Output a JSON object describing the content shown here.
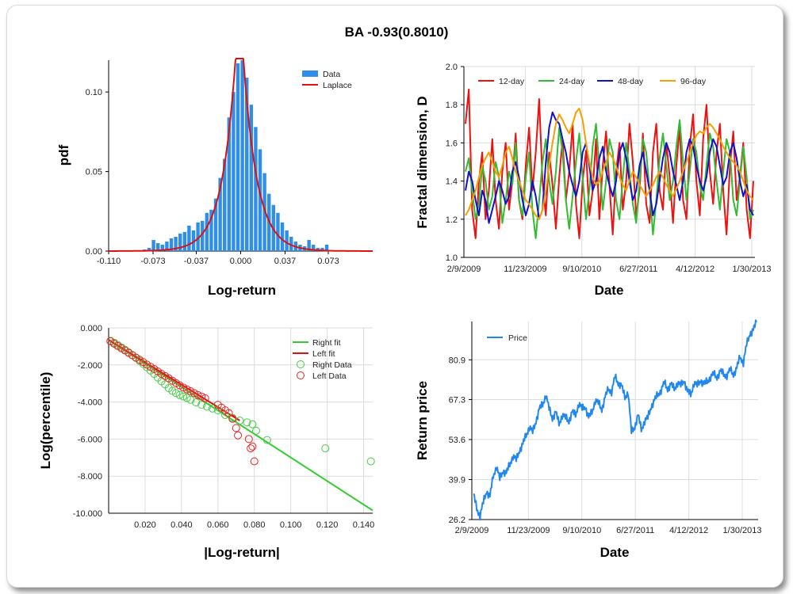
{
  "title": "BA  -0.93(0.8010)",
  "chart_data": [
    {
      "type": "bar",
      "name": "pdf histogram",
      "xlabel": "Log-return",
      "ylabel": "pdf",
      "xlim": [
        -0.11,
        0.11
      ],
      "ylim": [
        0,
        0.12
      ],
      "xticks": [
        "-0.110",
        "-0.073",
        "-0.037",
        "0.000",
        "0.037",
        "0.073"
      ],
      "xtick_values": [
        -0.11,
        -0.073,
        -0.037,
        0.0,
        0.037,
        0.073
      ],
      "yticks": [
        "0.00",
        "0.05",
        "0.10"
      ],
      "ytick_values": [
        0.0,
        0.05,
        0.1
      ],
      "legend": [
        "Data",
        "Laplace"
      ],
      "legend_position": "top-right",
      "bin_centers": [
        -0.08,
        -0.0763,
        -0.0726,
        -0.0689,
        -0.0652,
        -0.0615,
        -0.0578,
        -0.0541,
        -0.0504,
        -0.0467,
        -0.043,
        -0.0393,
        -0.0356,
        -0.0319,
        -0.0282,
        -0.0245,
        -0.0208,
        -0.0171,
        -0.0134,
        -0.0097,
        -0.006,
        -0.0023,
        0.0014,
        0.0051,
        0.0088,
        0.0125,
        0.0162,
        0.0199,
        0.0236,
        0.0273,
        0.031,
        0.0347,
        0.0384,
        0.0421,
        0.0458,
        0.0495,
        0.0532,
        0.0569,
        0.0606,
        0.0643,
        0.068,
        0.0717
      ],
      "values": [
        0.001,
        0.002,
        0.007,
        0.005,
        0.004,
        0.006,
        0.008,
        0.009,
        0.011,
        0.012,
        0.016,
        0.013,
        0.018,
        0.019,
        0.024,
        0.026,
        0.033,
        0.046,
        0.058,
        0.084,
        0.1,
        0.118,
        0.122,
        0.109,
        0.092,
        0.078,
        0.064,
        0.049,
        0.036,
        0.029,
        0.024,
        0.018,
        0.013,
        0.009,
        0.006,
        0.004,
        0.003,
        0.007,
        0.004,
        0.002,
        0.002,
        0.004
      ],
      "laplace": {
        "mu": -0.001,
        "b": 0.0115
      }
    },
    {
      "type": "line",
      "name": "fractal dimension",
      "xlabel": "Date",
      "ylabel": "Fractal dimension, D",
      "ylim": [
        1.0,
        2.0
      ],
      "xticks": [
        "2/9/2009",
        "11/23/2009",
        "9/10/2010",
        "6/27/2011",
        "4/12/2012",
        "1/30/2013"
      ],
      "yticks": [
        "1.0",
        "1.2",
        "1.4",
        "1.6",
        "1.8",
        "2.0"
      ],
      "legend_position": "top",
      "series": [
        {
          "name": "12-day",
          "color": "#ee1111",
          "values": [
            1.7,
            1.88,
            1.25,
            1.1,
            1.4,
            1.55,
            1.2,
            1.35,
            1.62,
            1.3,
            1.15,
            1.45,
            1.6,
            1.25,
            1.4,
            1.65,
            1.3,
            1.2,
            1.48,
            1.68,
            1.35,
            1.55,
            1.83,
            1.4,
            1.22,
            1.55,
            1.38,
            1.15,
            1.42,
            1.62,
            1.3,
            1.45,
            1.7,
            1.28,
            1.1,
            1.4,
            1.56,
            1.22,
            1.35,
            1.62,
            1.2,
            1.48,
            1.66,
            1.38,
            1.12,
            1.45,
            1.6,
            1.25,
            1.4,
            1.7,
            1.5,
            1.22,
            1.35,
            1.65,
            1.28,
            1.18,
            1.55,
            1.7,
            1.35,
            1.25,
            1.6,
            1.42,
            1.18,
            1.48,
            1.68,
            1.3,
            1.2,
            1.58,
            1.75,
            1.4,
            1.22,
            1.62,
            1.8,
            1.45,
            1.28,
            1.55,
            1.7,
            1.35,
            1.12,
            1.48,
            1.66,
            1.3,
            1.42,
            1.6,
            1.25,
            1.1,
            1.4
          ]
        },
        {
          "name": "24-day",
          "color": "#33bb33",
          "values": [
            1.45,
            1.52,
            1.35,
            1.2,
            1.28,
            1.48,
            1.4,
            1.25,
            1.32,
            1.5,
            1.42,
            1.18,
            1.3,
            1.45,
            1.38,
            1.6,
            1.3,
            1.22,
            1.42,
            1.55,
            1.25,
            1.1,
            1.3,
            1.5,
            1.62,
            1.4,
            1.28,
            1.45,
            1.68,
            1.55,
            1.3,
            1.15,
            1.32,
            1.5,
            1.65,
            1.42,
            1.2,
            1.35,
            1.58,
            1.7,
            1.48,
            1.25,
            1.4,
            1.62,
            1.55,
            1.3,
            1.2,
            1.42,
            1.6,
            1.45,
            1.28,
            1.18,
            1.4,
            1.62,
            1.55,
            1.35,
            1.12,
            1.3,
            1.52,
            1.65,
            1.48,
            1.3,
            1.4,
            1.58,
            1.72,
            1.5,
            1.3,
            1.45,
            1.62,
            1.55,
            1.38,
            1.3,
            1.48,
            1.65,
            1.58,
            1.4,
            1.25,
            1.45,
            1.62,
            1.55,
            1.3,
            1.22,
            1.4,
            1.58,
            1.42,
            1.2,
            1.25
          ]
        },
        {
          "name": "48-day",
          "color": "#1111cc",
          "values": [
            1.35,
            1.45,
            1.4,
            1.3,
            1.22,
            1.35,
            1.3,
            1.18,
            1.25,
            1.32,
            1.4,
            1.35,
            1.28,
            1.32,
            1.45,
            1.5,
            1.42,
            1.3,
            1.22,
            1.28,
            1.4,
            1.32,
            1.2,
            1.25,
            1.5,
            1.68,
            1.76,
            1.72,
            1.7,
            1.62,
            1.55,
            1.45,
            1.38,
            1.32,
            1.4,
            1.55,
            1.6,
            1.48,
            1.35,
            1.4,
            1.52,
            1.58,
            1.45,
            1.38,
            1.32,
            1.4,
            1.55,
            1.6,
            1.52,
            1.4,
            1.3,
            1.35,
            1.48,
            1.55,
            1.45,
            1.35,
            1.22,
            1.28,
            1.4,
            1.52,
            1.6,
            1.55,
            1.45,
            1.38,
            1.3,
            1.4,
            1.55,
            1.62,
            1.58,
            1.48,
            1.4,
            1.35,
            1.42,
            1.55,
            1.62,
            1.58,
            1.48,
            1.38,
            1.42,
            1.55,
            1.6,
            1.52,
            1.4,
            1.32,
            1.38,
            1.25,
            1.22
          ]
        },
        {
          "name": "96-day",
          "color": "#f5a000",
          "values": [
            1.22,
            1.25,
            1.3,
            1.35,
            1.42,
            1.48,
            1.52,
            1.55,
            1.5,
            1.45,
            1.42,
            1.48,
            1.55,
            1.58,
            1.52,
            1.45,
            1.4,
            1.35,
            1.3,
            1.28,
            1.25,
            1.22,
            1.2,
            1.25,
            1.35,
            1.48,
            1.6,
            1.7,
            1.75,
            1.72,
            1.68,
            1.65,
            1.7,
            1.76,
            1.78,
            1.72,
            1.6,
            1.5,
            1.42,
            1.38,
            1.4,
            1.45,
            1.5,
            1.55,
            1.52,
            1.48,
            1.42,
            1.38,
            1.35,
            1.4,
            1.45,
            1.42,
            1.38,
            1.35,
            1.32,
            1.35,
            1.38,
            1.42,
            1.45,
            1.42,
            1.38,
            1.35,
            1.32,
            1.36,
            1.4,
            1.45,
            1.5,
            1.55,
            1.6,
            1.64,
            1.66,
            1.65,
            1.68,
            1.7,
            1.68,
            1.65,
            1.62,
            1.58,
            1.55,
            1.52,
            1.5,
            1.48,
            1.45,
            1.4,
            1.35,
            1.32,
            1.3
          ]
        }
      ]
    },
    {
      "type": "scatter",
      "name": "tail log-percentile",
      "xlabel": "|Log-return|",
      "ylabel": "Log(percentile)",
      "xlim": [
        0.0,
        0.145
      ],
      "ylim": [
        -10.0,
        0.0
      ],
      "xticks": [
        "0.020",
        "0.040",
        "0.060",
        "0.080",
        "0.100",
        "0.120",
        "0.140"
      ],
      "xtick_values": [
        0.02,
        0.04,
        0.06,
        0.08,
        0.1,
        0.12,
        0.14
      ],
      "yticks": [
        "0.000",
        "-2.000",
        "-4.000",
        "-6.000",
        "-8.000",
        "-10.000"
      ],
      "ytick_values": [
        0.0,
        -2.0,
        -4.0,
        -6.0,
        -8.0,
        -10.0
      ],
      "legend_position": "top-right",
      "right_fit": {
        "name": "Right fit",
        "color": "#33cc33",
        "x": [
          0.0,
          0.145
        ],
        "y": [
          -0.65,
          -9.85
        ]
      },
      "left_fit": {
        "name": "Left fit",
        "color": "#dd1111",
        "x": [
          0.0,
          0.072
        ],
        "y": [
          -0.65,
          -5.0
        ]
      },
      "right_data": {
        "name": "Right Data",
        "color": "#44cc44",
        "x": [
          0.001,
          0.003,
          0.005,
          0.007,
          0.009,
          0.011,
          0.013,
          0.015,
          0.017,
          0.019,
          0.021,
          0.023,
          0.025,
          0.027,
          0.029,
          0.031,
          0.033,
          0.035,
          0.037,
          0.039,
          0.041,
          0.043,
          0.045,
          0.048,
          0.051,
          0.054,
          0.057,
          0.06,
          0.064,
          0.068,
          0.072,
          0.076,
          0.079,
          0.081,
          0.087,
          0.119,
          0.144
        ],
        "y": [
          -0.7,
          -0.8,
          -0.92,
          -1.05,
          -1.18,
          -1.32,
          -1.46,
          -1.62,
          -1.78,
          -1.95,
          -2.12,
          -2.3,
          -2.48,
          -2.68,
          -2.88,
          -3.05,
          -3.25,
          -3.4,
          -3.52,
          -3.62,
          -3.7,
          -3.78,
          -3.88,
          -4.02,
          -4.15,
          -4.25,
          -4.35,
          -4.45,
          -4.7,
          -4.85,
          -5.0,
          -5.1,
          -5.2,
          -5.55,
          -6.05,
          -6.5,
          -7.2
        ]
      },
      "left_data": {
        "name": "Left Data",
        "color": "#ee2222",
        "x": [
          0.001,
          0.003,
          0.005,
          0.007,
          0.009,
          0.011,
          0.013,
          0.015,
          0.017,
          0.019,
          0.021,
          0.023,
          0.025,
          0.027,
          0.029,
          0.031,
          0.033,
          0.035,
          0.037,
          0.039,
          0.041,
          0.043,
          0.045,
          0.047,
          0.049,
          0.051,
          0.053,
          0.06,
          0.062,
          0.064,
          0.066,
          0.068,
          0.07,
          0.071,
          0.077,
          0.078,
          0.079,
          0.08
        ],
        "y": [
          -0.72,
          -0.85,
          -0.98,
          -1.1,
          -1.22,
          -1.35,
          -1.48,
          -1.6,
          -1.72,
          -1.85,
          -1.98,
          -2.1,
          -2.22,
          -2.35,
          -2.48,
          -2.6,
          -2.72,
          -2.85,
          -2.98,
          -3.1,
          -3.22,
          -3.32,
          -3.42,
          -3.52,
          -3.62,
          -3.7,
          -3.8,
          -4.15,
          -4.3,
          -4.45,
          -4.6,
          -4.9,
          -5.4,
          -5.8,
          -6.0,
          -6.5,
          -6.4,
          -7.2
        ]
      }
    },
    {
      "type": "line",
      "name": "price",
      "xlabel": "Date",
      "ylabel": "Return price",
      "ylim": [
        26.2,
        94.0
      ],
      "xticks": [
        "2/9/2009",
        "11/23/2009",
        "9/10/2010",
        "6/27/2011",
        "4/12/2012",
        "1/30/2013"
      ],
      "yticks": [
        "26.2",
        "39.9",
        "53.6",
        "67.3",
        "80.9"
      ],
      "ytick_values": [
        26.2,
        39.9,
        53.6,
        67.3,
        80.9
      ],
      "legend_position": "top-left",
      "series": [
        {
          "name": "Price",
          "color": "#2288ee",
          "values": [
            35.0,
            30.0,
            27.5,
            32.0,
            36.0,
            34.0,
            41.0,
            44.5,
            40.0,
            43.0,
            42.0,
            45.0,
            48.0,
            46.5,
            50.0,
            52.0,
            55.0,
            58.0,
            56.0,
            60.0,
            64.0,
            65.5,
            69.0,
            64.0,
            61.0,
            63.0,
            59.0,
            62.0,
            61.0,
            60.0,
            63.0,
            62.0,
            66.0,
            64.0,
            65.0,
            61.0,
            63.0,
            67.0,
            66.0,
            64.0,
            68.0,
            71.0,
            70.0,
            75.0,
            73.0,
            72.0,
            68.0,
            70.0,
            56.0,
            58.0,
            62.0,
            57.0,
            60.0,
            61.0,
            65.0,
            67.0,
            69.0,
            70.5,
            73.0,
            71.0,
            72.5,
            71.0,
            73.0,
            72.0,
            74.0,
            70.0,
            69.0,
            73.0,
            72.0,
            74.0,
            72.5,
            73.5,
            75.0,
            76.0,
            75.0,
            77.0,
            76.0,
            75.5,
            77.5,
            76.0,
            78.0,
            82.0,
            80.0,
            86.0,
            90.0,
            91.0,
            93.8
          ]
        }
      ]
    }
  ]
}
